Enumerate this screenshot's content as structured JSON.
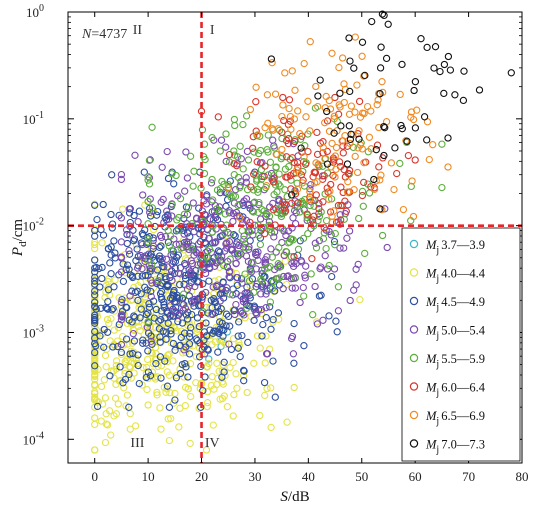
{
  "chart_data": {
    "type": "scatter",
    "xlabel": "S/dB",
    "ylabel": "Pd/cm",
    "ylabel_main": "P",
    "ylabel_sub": "d",
    "ylabel_unit": "/cm",
    "xlabel_var": "S",
    "xlabel_unit": "/dB",
    "xlim": [
      -5,
      80
    ],
    "ylim": [
      6e-05,
      1
    ],
    "yscale": "log",
    "xticks": [
      0,
      10,
      20,
      30,
      40,
      50,
      60,
      70,
      80
    ],
    "yticks": [
      {
        "value": 0.0001,
        "base": "10",
        "exp": "-4"
      },
      {
        "value": 0.001,
        "base": "10",
        "exp": "-3"
      },
      {
        "value": 0.01,
        "base": "10",
        "exp": "-2"
      },
      {
        "value": 0.1,
        "base": "10",
        "exp": "-1"
      },
      {
        "value": 1,
        "base": "10",
        "exp": "0"
      }
    ],
    "annotation": {
      "var": "N",
      "text": "=4737"
    },
    "threshold_lines": {
      "x": 20,
      "y": 0.01,
      "color": "#e8262a"
    },
    "quadrants": [
      {
        "label": "II",
        "x": 8,
        "y": 0.62
      },
      {
        "label": "I",
        "x": 22,
        "y": 0.62
      },
      {
        "label": "III",
        "x": 8,
        "y": 8.5e-05
      },
      {
        "label": "IV",
        "x": 22,
        "y": 8.5e-05
      }
    ],
    "legend_position": "bottom-right",
    "series": [
      {
        "name": "3.7—3.9",
        "prefix": "M",
        "sub": "j",
        "color": "#3fb6c8",
        "count": 6,
        "x": [
          10,
          30
        ],
        "ylog": [
          -3.4,
          -2.5
        ],
        "xc": 20,
        "yc": -2.9
      },
      {
        "name": "4.0—4.4",
        "prefix": "M",
        "sub": "j",
        "color": "#e4e448",
        "count": 480,
        "x": [
          0,
          60
        ],
        "ylog": [
          -4.1,
          -1.8
        ],
        "xc": 11,
        "yc": -3.05
      },
      {
        "name": "4.5—4.9",
        "prefix": "M",
        "sub": "j",
        "color": "#2c4fa0",
        "count": 520,
        "x": [
          0,
          50
        ],
        "ylog": [
          -3.7,
          -1.5
        ],
        "xc": 16,
        "yc": -2.6
      },
      {
        "name": "5.0—5.4",
        "prefix": "M",
        "sub": "j",
        "color": "#7b4bb0",
        "count": 380,
        "x": [
          5,
          60
        ],
        "ylog": [
          -3.2,
          -1.2
        ],
        "xc": 26,
        "yc": -2.2
      },
      {
        "name": "5.5—5.9",
        "prefix": "M",
        "sub": "j",
        "color": "#5cae3c",
        "count": 260,
        "x": [
          10,
          65
        ],
        "ylog": [
          -2.9,
          -0.9
        ],
        "xc": 32,
        "yc": -1.8
      },
      {
        "name": "6.0—6.4",
        "prefix": "M",
        "sub": "j",
        "color": "#d9352b",
        "count": 120,
        "x": [
          20,
          60
        ],
        "ylog": [
          -2.6,
          -0.8
        ],
        "xc": 40,
        "yc": -1.5
      },
      {
        "name": "6.5—6.9",
        "prefix": "M",
        "sub": "j",
        "color": "#f08a22",
        "count": 130,
        "x": [
          25,
          70
        ],
        "ylog": [
          -2.3,
          -0.05
        ],
        "xc": 45,
        "yc": -1.2
      },
      {
        "name": "7.0—7.3",
        "prefix": "M",
        "sub": "j",
        "color": "#111111",
        "count": 60,
        "x": [
          30,
          78
        ],
        "ylog": [
          -2.6,
          -0.02
        ],
        "xc": 55,
        "yc": -0.8
      }
    ]
  }
}
